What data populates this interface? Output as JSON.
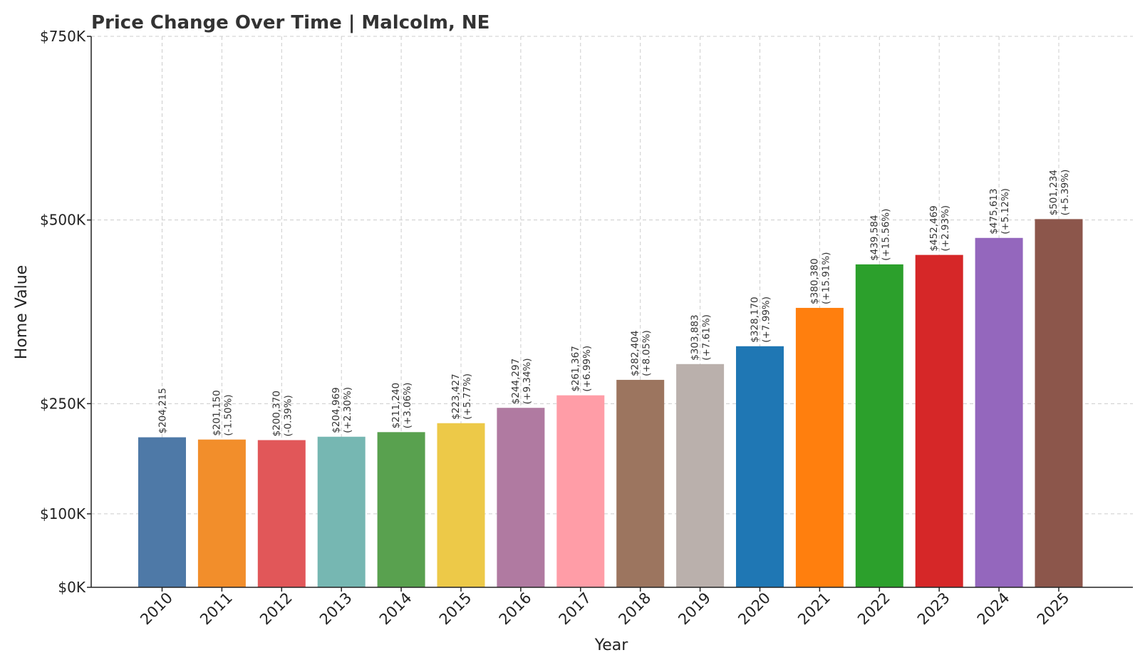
{
  "chart_data": {
    "type": "bar",
    "title": "Price Change Over Time | Malcolm, NE",
    "xlabel": "Year",
    "ylabel": "Home Value",
    "ylim": [
      0,
      750000
    ],
    "yticks": [
      0,
      100000,
      250000,
      500000,
      750000
    ],
    "ytick_labels": [
      "$0K",
      "$100K",
      "$250K",
      "$500K",
      "$750K"
    ],
    "grid": true,
    "categories": [
      "2010",
      "2011",
      "2012",
      "2013",
      "2014",
      "2015",
      "2016",
      "2017",
      "2018",
      "2019",
      "2020",
      "2021",
      "2022",
      "2023",
      "2024",
      "2025"
    ],
    "values": [
      204215,
      201150,
      200370,
      204969,
      211240,
      223427,
      244297,
      261367,
      282404,
      303883,
      328170,
      380380,
      439584,
      452469,
      475613,
      501234
    ],
    "value_labels": [
      "$204,215",
      "$201,150",
      "$200,370",
      "$204,969",
      "$211,240",
      "$223,427",
      "$244,297",
      "$261,367",
      "$282,404",
      "$303,883",
      "$328,170",
      "$380,380",
      "$439,584",
      "$452,469",
      "$475,613",
      "$501,234"
    ],
    "change_labels": [
      "",
      "(-1.50%)",
      "(-0.39%)",
      "(+2.30%)",
      "(+3.06%)",
      "(+5.77%)",
      "(+9.34%)",
      "(+6.99%)",
      "(+8.05%)",
      "(+7.61%)",
      "(+7.99%)",
      "(+15.91%)",
      "(+15.56%)",
      "(+2.93%)",
      "(+5.12%)",
      "(+5.39%)"
    ],
    "colors": [
      "#4e79a7",
      "#f28e2b",
      "#e15759",
      "#76b7b2",
      "#59a14f",
      "#edc948",
      "#b07aa1",
      "#ff9da7",
      "#9c755f",
      "#bab0ac",
      "#1f77b4",
      "#ff7f0e",
      "#2ca02c",
      "#d62728",
      "#9467bd",
      "#8c564b"
    ]
  }
}
